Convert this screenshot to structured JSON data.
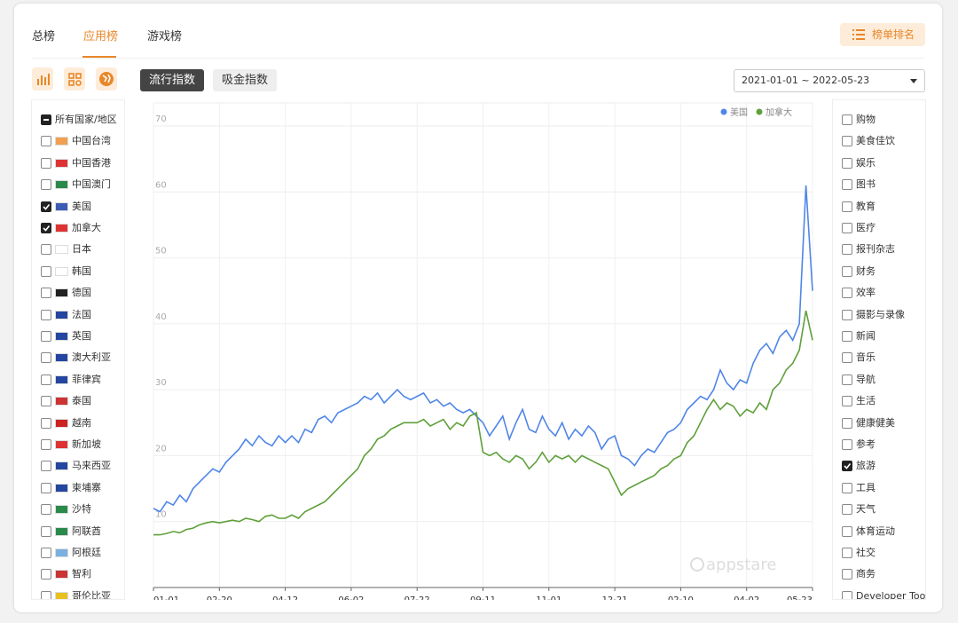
{
  "tabs": [
    "总榜",
    "应用榜",
    "游戏榜"
  ],
  "active_tab": 1,
  "rank_button": "榜单排名",
  "index_buttons": [
    "流行指数",
    "吸金指数"
  ],
  "active_index": 0,
  "date_range": "2021-01-01 ~ 2022-05-23",
  "countries": [
    {
      "label": "所有国家/地区",
      "checked": "mixed"
    },
    {
      "label": "中国台湾",
      "checked": false
    },
    {
      "label": "中国香港",
      "checked": false
    },
    {
      "label": "中国澳门",
      "checked": false
    },
    {
      "label": "美国",
      "checked": true
    },
    {
      "label": "加拿大",
      "checked": true
    },
    {
      "label": "日本",
      "checked": false
    },
    {
      "label": "韩国",
      "checked": false
    },
    {
      "label": "德国",
      "checked": false
    },
    {
      "label": "法国",
      "checked": false
    },
    {
      "label": "英国",
      "checked": false
    },
    {
      "label": "澳大利亚",
      "checked": false
    },
    {
      "label": "菲律宾",
      "checked": false
    },
    {
      "label": "泰国",
      "checked": false
    },
    {
      "label": "越南",
      "checked": false
    },
    {
      "label": "新加坡",
      "checked": false
    },
    {
      "label": "马来西亚",
      "checked": false
    },
    {
      "label": "柬埔寨",
      "checked": false
    },
    {
      "label": "沙特",
      "checked": false
    },
    {
      "label": "阿联酋",
      "checked": false
    },
    {
      "label": "阿根廷",
      "checked": false
    },
    {
      "label": "智利",
      "checked": false
    },
    {
      "label": "哥伦比亚",
      "checked": false
    }
  ],
  "app_categories": [
    {
      "label": "购物",
      "checked": false
    },
    {
      "label": "美食佳饮",
      "checked": false
    },
    {
      "label": "娱乐",
      "checked": false
    },
    {
      "label": "图书",
      "checked": false
    },
    {
      "label": "教育",
      "checked": false
    },
    {
      "label": "医疗",
      "checked": false
    },
    {
      "label": "报刊杂志",
      "checked": false
    },
    {
      "label": "财务",
      "checked": false
    },
    {
      "label": "效率",
      "checked": false
    },
    {
      "label": "摄影与录像",
      "checked": false
    },
    {
      "label": "新闻",
      "checked": false
    },
    {
      "label": "音乐",
      "checked": false
    },
    {
      "label": "导航",
      "checked": false
    },
    {
      "label": "生活",
      "checked": false
    },
    {
      "label": "健康健美",
      "checked": false
    },
    {
      "label": "参考",
      "checked": false
    },
    {
      "label": "旅游",
      "checked": true
    },
    {
      "label": "工具",
      "checked": false
    },
    {
      "label": "天气",
      "checked": false
    },
    {
      "label": "体育运动",
      "checked": false
    },
    {
      "label": "社交",
      "checked": false
    },
    {
      "label": "商务",
      "checked": false
    },
    {
      "label": "Developer Tools",
      "checked": false
    }
  ],
  "chart_data": {
    "type": "line",
    "watermark": "appstare",
    "legend": "top-right",
    "grid": true,
    "categories": [
      "01-01",
      null,
      null,
      null,
      null,
      null,
      null,
      null,
      null,
      null,
      "02-20",
      null,
      null,
      null,
      null,
      null,
      null,
      null,
      null,
      null,
      "04-12",
      null,
      null,
      null,
      null,
      null,
      null,
      null,
      null,
      null,
      "06-02",
      null,
      null,
      null,
      null,
      null,
      null,
      null,
      null,
      null,
      "07-22",
      null,
      null,
      null,
      null,
      null,
      null,
      null,
      null,
      null,
      "09-11",
      null,
      null,
      null,
      null,
      null,
      null,
      null,
      null,
      null,
      "11-01",
      null,
      null,
      null,
      null,
      null,
      null,
      null,
      null,
      null,
      "12-21",
      null,
      null,
      null,
      null,
      null,
      null,
      null,
      null,
      null,
      "02-10",
      null,
      null,
      null,
      null,
      null,
      null,
      null,
      null,
      null,
      "04-02",
      null,
      null,
      null,
      null,
      null,
      null,
      null,
      null,
      null,
      "05-23"
    ],
    "ylim": [
      0,
      70
    ],
    "yticks": [
      10,
      20,
      30,
      40,
      50,
      60,
      70
    ],
    "series": [
      {
        "name": "美国",
        "color": "#4f86e8",
        "values": [
          12,
          11.5,
          13,
          12.5,
          14,
          13,
          15,
          16,
          17,
          18,
          17.5,
          19,
          20,
          21,
          22.5,
          21.5,
          23,
          22,
          21.5,
          23,
          22,
          23,
          22,
          24,
          23.5,
          25.5,
          26,
          25,
          26.5,
          27,
          27.5,
          28,
          29,
          28.5,
          29.5,
          28,
          29,
          30,
          29,
          28.5,
          29,
          29.5,
          28,
          28.5,
          27.5,
          28,
          27,
          26.5,
          27,
          26,
          25,
          23,
          24.5,
          26,
          22.5,
          25,
          27,
          24,
          23.5,
          26,
          24,
          23,
          25,
          22.5,
          24,
          23,
          24.5,
          23.5,
          21,
          22.5,
          23,
          20,
          19.5,
          18.5,
          20,
          21,
          20.5,
          22,
          23.5,
          24,
          25,
          27,
          28,
          29,
          28.5,
          30,
          33,
          31,
          30,
          31.5,
          31,
          34,
          36,
          37,
          35.5,
          38,
          39,
          37.5,
          40,
          61,
          45
        ]
      },
      {
        "name": "加拿大",
        "color": "#5fa03a",
        "values": [
          8,
          8,
          8.2,
          8.5,
          8.3,
          8.8,
          9,
          9.5,
          9.8,
          10,
          9.8,
          10,
          10.2,
          10,
          10.5,
          10.3,
          10,
          10.8,
          11,
          10.5,
          10.5,
          11,
          10.5,
          11.5,
          12,
          12.5,
          13,
          14,
          15,
          16,
          17,
          18,
          20,
          21,
          22.5,
          23,
          24,
          24.5,
          25,
          25,
          25,
          25.5,
          24.5,
          25,
          25.5,
          24,
          25,
          24.5,
          26,
          26.5,
          20.5,
          20,
          20.5,
          19.5,
          19,
          20,
          19.5,
          18,
          19,
          20.5,
          19,
          20,
          19.5,
          20,
          19,
          20,
          19.5,
          19,
          18.5,
          18,
          16,
          14,
          15,
          15.5,
          16,
          16.5,
          17,
          18,
          18.5,
          19.5,
          20,
          22,
          23,
          25,
          27,
          28.5,
          27,
          28,
          27.5,
          26,
          27,
          26.5,
          28,
          27,
          30,
          31,
          33,
          34,
          36,
          42,
          37.5
        ]
      }
    ]
  }
}
